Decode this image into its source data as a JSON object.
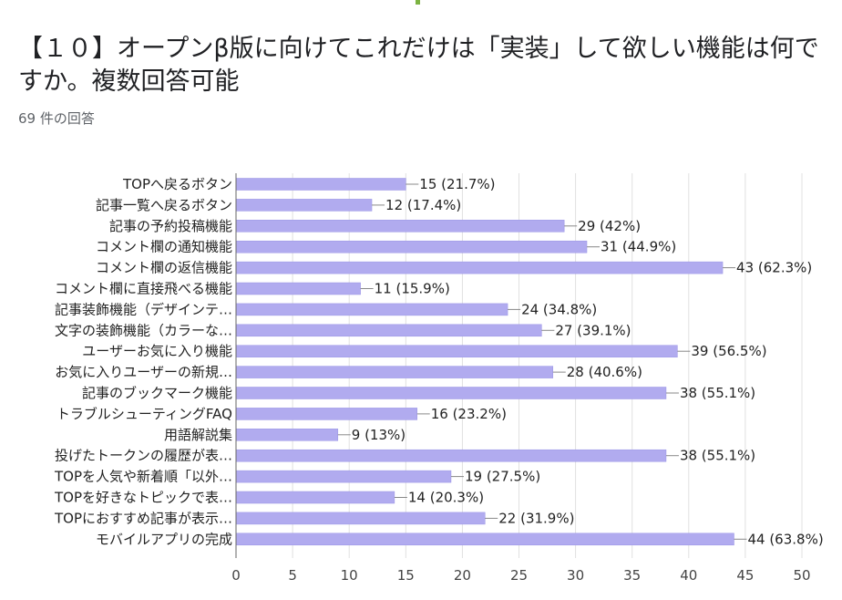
{
  "question_title": "【１０】オープンβ版に向けてこれだけは「実装」して欲しい機能は何ですか。複数回答可能",
  "response_count": "69 件の回答",
  "colors": {
    "bar": "#b1abef",
    "bar_stroke": "#9a94e6",
    "grid": "#e0e0e0",
    "axis": "#666666"
  },
  "chart_data": {
    "type": "bar",
    "orientation": "horizontal",
    "title": "【１０】オープンβ版に向けてこれだけは「実装」して欲しい機能は何ですか。複数回答可能",
    "xlabel": "",
    "ylabel": "",
    "xlim": [
      0,
      50
    ],
    "xticks": [
      "0",
      "5",
      "10",
      "15",
      "20",
      "25",
      "30",
      "35",
      "40",
      "45",
      "50"
    ],
    "grid": true,
    "categories": [
      "TOPへ戻るボタン",
      "記事一覧へ戻るボタン",
      "記事の予約投稿機能",
      "コメント欄の通知機能",
      "コメント欄の返信機能",
      "コメント欄に直接飛べる機能",
      "記事装飾機能（デザインテ…",
      "文字の装飾機能（カラーな…",
      "ユーザーお気に入り機能",
      "お気に入りユーザーの新規…",
      "記事のブックマーク機能",
      "トラブルシューティングFAQ",
      "用語解説集",
      "投げたトークンの履歴が表…",
      "TOPを人気や新着順「以外…",
      "TOPを好きなトピックで表…",
      "TOPにおすすめ記事が表示…",
      "モバイルアプリの完成"
    ],
    "values": [
      15,
      12,
      29,
      31,
      43,
      11,
      24,
      27,
      39,
      28,
      38,
      16,
      9,
      38,
      19,
      14,
      22,
      44
    ],
    "data_labels": [
      "15 (21.7%)",
      "12 (17.4%)",
      "29 (42%)",
      "31 (44.9%)",
      "43 (62.3%)",
      "11 (15.9%)",
      "24 (34.8%)",
      "27 (39.1%)",
      "39 (56.5%)",
      "28 (40.6%)",
      "38 (55.1%)",
      "16 (23.2%)",
      "9 (13%)",
      "38 (55.1%)",
      "19 (27.5%)",
      "14 (20.3%)",
      "22 (31.9%)",
      "44 (63.8%)"
    ]
  }
}
